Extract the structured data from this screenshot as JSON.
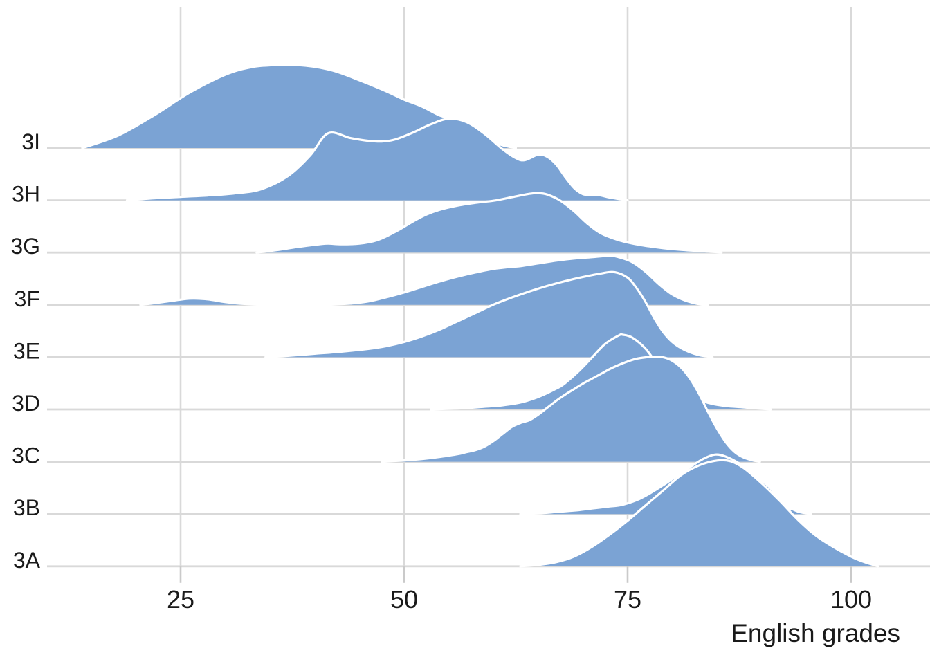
{
  "chart_data": {
    "type": "ridgeline",
    "title": "",
    "xlabel": "English grades",
    "ylabel": "",
    "x_ticks": [
      25,
      50,
      75,
      100
    ],
    "x_range": [
      10,
      106
    ],
    "grid": "on",
    "legend": "none",
    "categories_top_to_bottom": [
      "3I",
      "3H",
      "3G",
      "3F",
      "3E",
      "3D",
      "3C",
      "3B",
      "3A"
    ],
    "colors": {
      "fill": "#7BA3D4",
      "outline": "#FFFFFF",
      "gridline": "#D9D9D9",
      "tick": "#CACACA",
      "text": "#1A1A1A"
    },
    "series": [
      {
        "label": "3I",
        "points": [
          [
            14,
            0
          ],
          [
            18,
            18
          ],
          [
            22,
            47
          ],
          [
            26,
            80
          ],
          [
            30,
            106
          ],
          [
            33,
            117
          ],
          [
            36,
            120
          ],
          [
            39,
            119
          ],
          [
            42,
            112
          ],
          [
            45,
            98
          ],
          [
            48,
            82
          ],
          [
            50,
            70
          ],
          [
            52,
            60
          ],
          [
            54,
            47
          ],
          [
            55.5,
            42
          ],
          [
            57,
            30
          ],
          [
            59,
            14
          ],
          [
            61,
            4
          ],
          [
            62.5,
            0
          ]
        ]
      },
      {
        "label": "3H",
        "points": [
          [
            19,
            0
          ],
          [
            22,
            3
          ],
          [
            25,
            5
          ],
          [
            28,
            7
          ],
          [
            31,
            10
          ],
          [
            34,
            16
          ],
          [
            37,
            35
          ],
          [
            39.5,
            65
          ],
          [
            41.5,
            97
          ],
          [
            44,
            90
          ],
          [
            46,
            86
          ],
          [
            47.5,
            85
          ],
          [
            49,
            88
          ],
          [
            51,
            98
          ],
          [
            53,
            110
          ],
          [
            55,
            118
          ],
          [
            57,
            113
          ],
          [
            59,
            96
          ],
          [
            61,
            74
          ],
          [
            62.5,
            61
          ],
          [
            63.5,
            58
          ],
          [
            65,
            66
          ],
          [
            66,
            63
          ],
          [
            67,
            52
          ],
          [
            68,
            34
          ],
          [
            69,
            18
          ],
          [
            70,
            9
          ],
          [
            71,
            8
          ],
          [
            72,
            7
          ],
          [
            73,
            4
          ],
          [
            75,
            0
          ]
        ]
      },
      {
        "label": "3G",
        "points": [
          [
            33.5,
            0
          ],
          [
            36,
            4
          ],
          [
            38,
            8
          ],
          [
            40.5,
            12
          ],
          [
            41.5,
            13
          ],
          [
            43,
            12
          ],
          [
            45,
            13
          ],
          [
            47,
            18
          ],
          [
            49,
            30
          ],
          [
            51,
            45
          ],
          [
            52.5,
            55
          ],
          [
            54,
            62
          ],
          [
            56,
            68
          ],
          [
            58,
            72
          ],
          [
            60,
            75
          ],
          [
            62,
            80
          ],
          [
            64,
            85
          ],
          [
            65,
            86
          ],
          [
            66,
            84
          ],
          [
            67.5,
            75
          ],
          [
            69,
            60
          ],
          [
            70.5,
            42
          ],
          [
            72,
            28
          ],
          [
            74,
            18
          ],
          [
            76,
            12
          ],
          [
            78,
            8
          ],
          [
            80,
            5
          ],
          [
            82,
            3
          ],
          [
            84,
            1.5
          ],
          [
            85.5,
            0
          ]
        ]
      },
      {
        "label": "3F",
        "points": [
          [
            20.5,
            0
          ],
          [
            23,
            4
          ],
          [
            26,
            9
          ],
          [
            28,
            8
          ],
          [
            30,
            4
          ],
          [
            32.5,
            1
          ],
          [
            35,
            0
          ],
          [
            38,
            0
          ],
          [
            41,
            0
          ],
          [
            44,
            2
          ],
          [
            46,
            5
          ],
          [
            48,
            11
          ],
          [
            50,
            18
          ],
          [
            52,
            26
          ],
          [
            54,
            34
          ],
          [
            56,
            41
          ],
          [
            58,
            47
          ],
          [
            60,
            52
          ],
          [
            62,
            55
          ],
          [
            63,
            56
          ],
          [
            65,
            60
          ],
          [
            67,
            64
          ],
          [
            69,
            67
          ],
          [
            71,
            69
          ],
          [
            73,
            71
          ],
          [
            74,
            69
          ],
          [
            75.5,
            62
          ],
          [
            77,
            48
          ],
          [
            78.5,
            30
          ],
          [
            80,
            15
          ],
          [
            81.5,
            6
          ],
          [
            83,
            1
          ],
          [
            84,
            0
          ]
        ]
      },
      {
        "label": "3E",
        "points": [
          [
            34.5,
            0
          ],
          [
            37,
            2
          ],
          [
            40,
            5
          ],
          [
            43,
            8
          ],
          [
            46,
            12
          ],
          [
            48,
            16
          ],
          [
            50,
            22
          ],
          [
            52,
            30
          ],
          [
            54,
            40
          ],
          [
            56,
            52
          ],
          [
            58,
            64
          ],
          [
            60,
            76
          ],
          [
            62,
            86
          ],
          [
            64,
            95
          ],
          [
            66,
            103
          ],
          [
            68,
            110
          ],
          [
            70,
            116
          ],
          [
            72,
            121
          ],
          [
            73.5,
            123
          ],
          [
            75,
            115
          ],
          [
            76,
            100
          ],
          [
            77,
            80
          ],
          [
            78,
            56
          ],
          [
            79,
            36
          ],
          [
            80,
            22
          ],
          [
            81,
            13
          ],
          [
            82,
            7
          ],
          [
            83,
            3
          ],
          [
            84.5,
            0
          ]
        ]
      },
      {
        "label": "3D",
        "points": [
          [
            53,
            0
          ],
          [
            55,
            1
          ],
          [
            57,
            2
          ],
          [
            59,
            4
          ],
          [
            61,
            6
          ],
          [
            63,
            10
          ],
          [
            65,
            18
          ],
          [
            67,
            30
          ],
          [
            68,
            38
          ],
          [
            69.5,
            55
          ],
          [
            71,
            75
          ],
          [
            72.5,
            95
          ],
          [
            74,
            107
          ],
          [
            74.5,
            108
          ],
          [
            75.5,
            104
          ],
          [
            77,
            88
          ],
          [
            78.5,
            62
          ],
          [
            80,
            40
          ],
          [
            81.5,
            24
          ],
          [
            83,
            14
          ],
          [
            84.5,
            8
          ],
          [
            86,
            5
          ],
          [
            88,
            3
          ],
          [
            90,
            1
          ],
          [
            91,
            0
          ]
        ]
      },
      {
        "label": "3C",
        "points": [
          [
            47.5,
            0
          ],
          [
            50,
            2
          ],
          [
            52,
            4
          ],
          [
            54,
            7
          ],
          [
            56,
            11
          ],
          [
            57,
            14
          ],
          [
            58,
            17
          ],
          [
            59,
            22
          ],
          [
            60,
            30
          ],
          [
            61,
            40
          ],
          [
            62,
            50
          ],
          [
            63,
            56
          ],
          [
            64,
            60
          ],
          [
            65,
            68
          ],
          [
            66,
            78
          ],
          [
            67,
            88
          ],
          [
            68,
            97
          ],
          [
            69,
            105
          ],
          [
            70,
            113
          ],
          [
            71,
            120
          ],
          [
            72,
            127
          ],
          [
            73,
            134
          ],
          [
            74,
            140
          ],
          [
            75,
            145
          ],
          [
            76,
            149
          ],
          [
            77,
            151
          ],
          [
            78,
            152
          ],
          [
            79,
            151
          ],
          [
            80,
            146
          ],
          [
            81,
            136
          ],
          [
            82,
            120
          ],
          [
            83,
            98
          ],
          [
            84,
            72
          ],
          [
            85,
            48
          ],
          [
            86,
            28
          ],
          [
            87,
            14
          ],
          [
            88,
            6
          ],
          [
            89,
            2
          ],
          [
            89.8,
            0
          ]
        ]
      },
      {
        "label": "3B",
        "points": [
          [
            63,
            0
          ],
          [
            65,
            1
          ],
          [
            67,
            3
          ],
          [
            69,
            5
          ],
          [
            71,
            8
          ],
          [
            73,
            11
          ],
          [
            74.3,
            13
          ],
          [
            76,
            20
          ],
          [
            77.5,
            30
          ],
          [
            79,
            42
          ],
          [
            80.5,
            55
          ],
          [
            82,
            68
          ],
          [
            83.5,
            80
          ],
          [
            84.8,
            86
          ],
          [
            86,
            83
          ],
          [
            87.5,
            73
          ],
          [
            89,
            57
          ],
          [
            90.8,
            40
          ],
          [
            92,
            20
          ],
          [
            92.8,
            8
          ],
          [
            93.4,
            7
          ],
          [
            94.2,
            3
          ],
          [
            95.5,
            0
          ]
        ]
      },
      {
        "label": "3A",
        "points": [
          [
            63,
            0
          ],
          [
            65,
            2
          ],
          [
            67,
            6
          ],
          [
            69,
            14
          ],
          [
            71,
            28
          ],
          [
            73,
            46
          ],
          [
            75,
            66
          ],
          [
            77,
            88
          ],
          [
            79,
            110
          ],
          [
            81,
            132
          ],
          [
            83,
            146
          ],
          [
            85,
            153
          ],
          [
            86.5,
            152
          ],
          [
            88,
            142
          ],
          [
            90,
            120
          ],
          [
            92,
            95
          ],
          [
            94,
            68
          ],
          [
            96,
            45
          ],
          [
            98,
            28
          ],
          [
            100,
            14
          ],
          [
            101.5,
            6
          ],
          [
            103,
            0
          ]
        ]
      }
    ]
  }
}
